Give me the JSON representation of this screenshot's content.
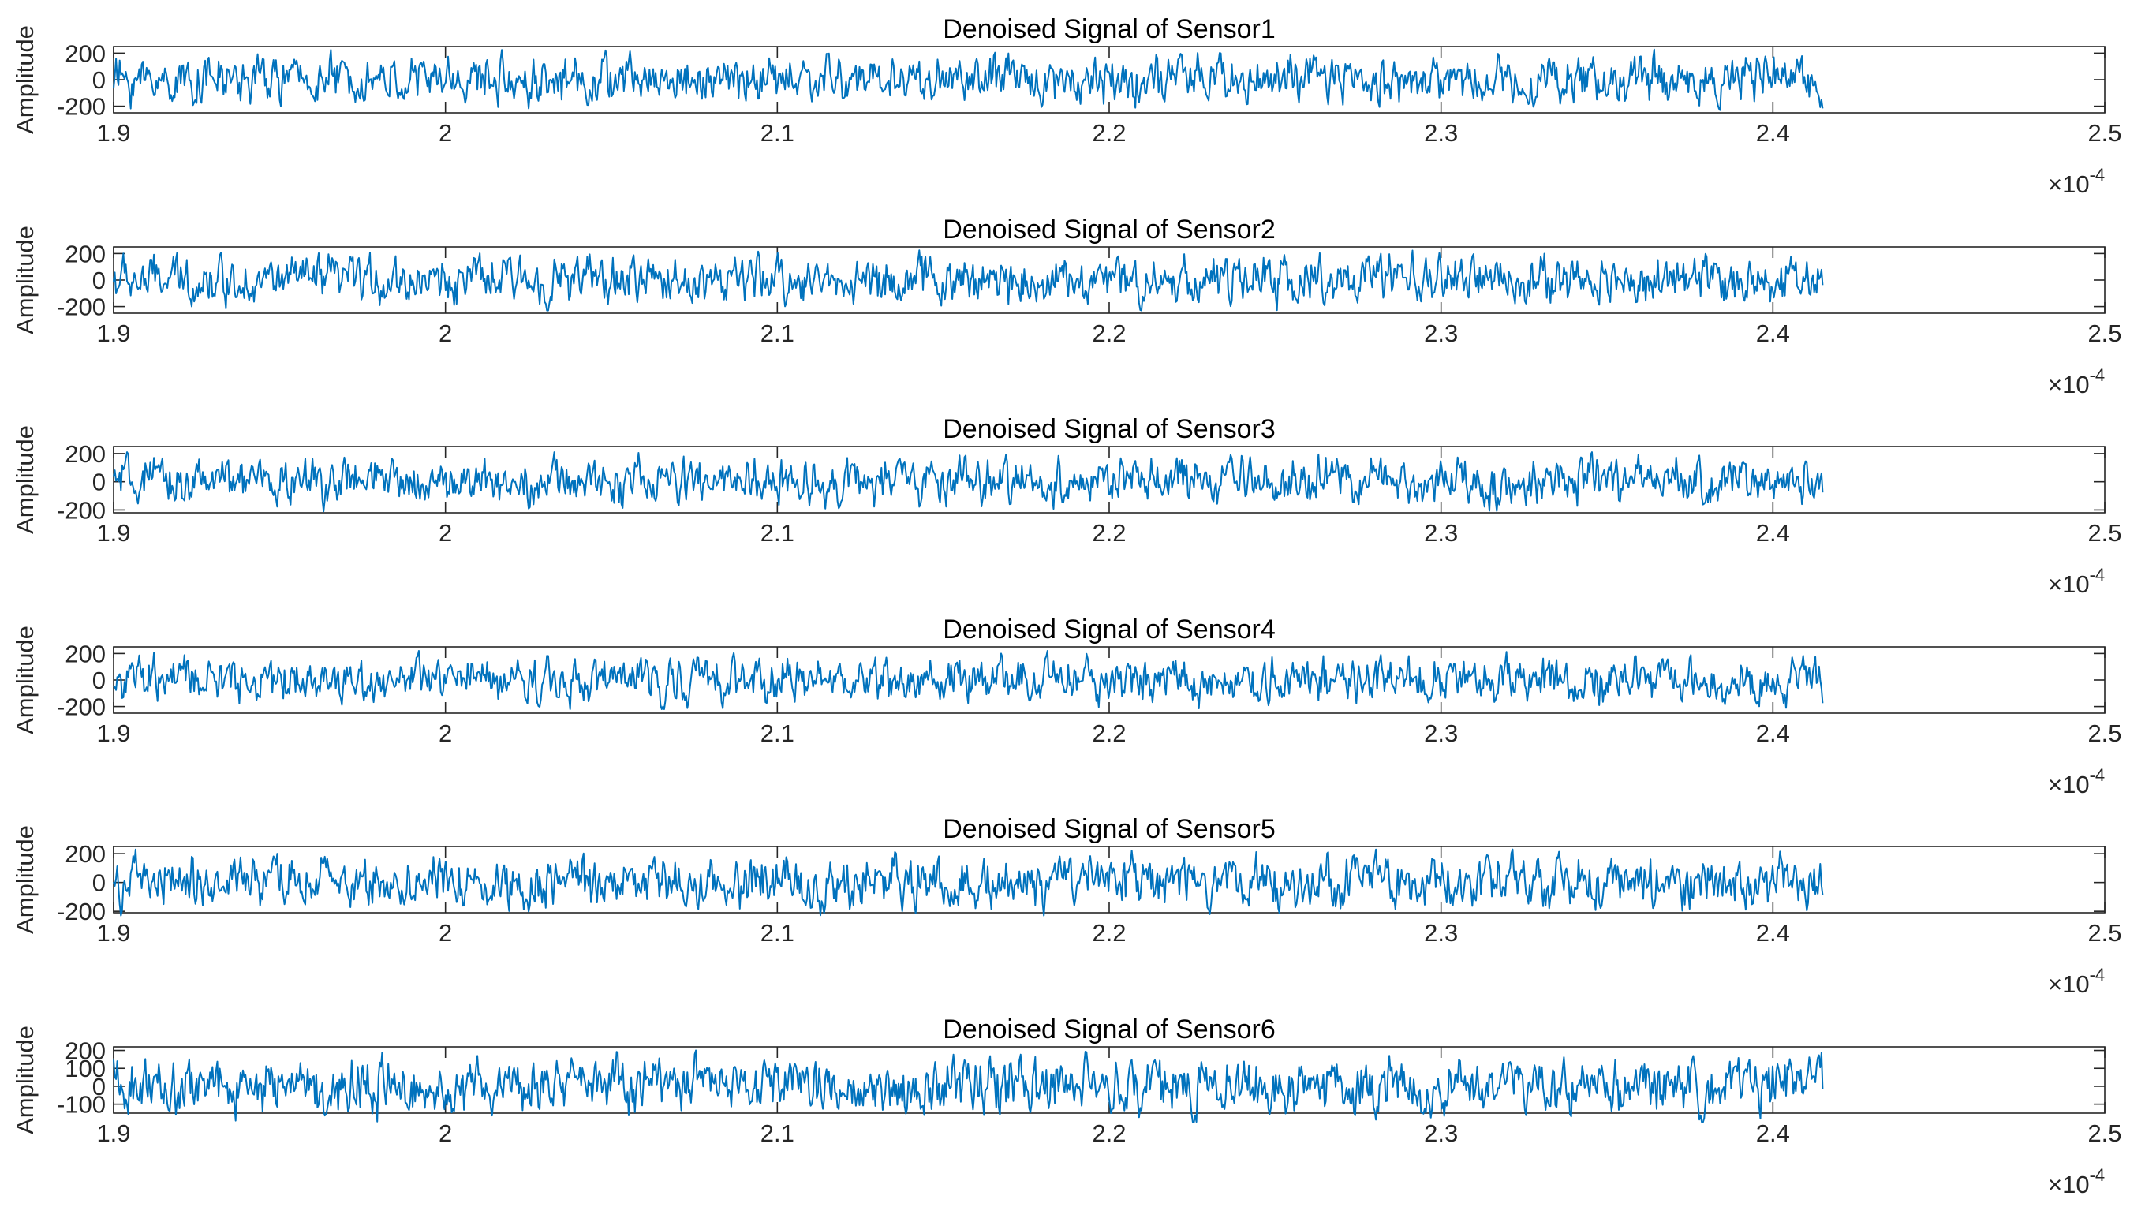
{
  "figure": {
    "x_multiplier_base": "×10",
    "x_multiplier_exponent": "-4"
  },
  "chart_data": [
    {
      "type": "line",
      "title": "Denoised Signal of Sensor1",
      "ylabel": "Amplitude",
      "xlim": [
        1.9,
        2.5
      ],
      "ylim": [
        -250,
        250
      ],
      "x_ticks": [
        "1.9",
        "2",
        "2.1",
        "2.2",
        "2.3",
        "2.4",
        "2.5"
      ],
      "x_tick_values": [
        1.9,
        2.0,
        2.1,
        2.2,
        2.3,
        2.4,
        2.5
      ],
      "y_ticks": [
        "200",
        "0",
        "-200"
      ],
      "y_tick_values": [
        200,
        0,
        -200
      ],
      "x_range_of_data": [
        1.9,
        2.415
      ],
      "amplitude_peak": 230,
      "color": "#0072BD",
      "series": [
        {
          "x_start": 1.9,
          "x_end": 2.415,
          "approx_peak_abs": 230,
          "kind": "noise-like oscillation"
        }
      ]
    },
    {
      "type": "line",
      "title": "Denoised Signal of Sensor2",
      "ylabel": "Amplitude",
      "xlim": [
        1.9,
        2.5
      ],
      "ylim": [
        -250,
        250
      ],
      "x_ticks": [
        "1.9",
        "2",
        "2.1",
        "2.2",
        "2.3",
        "2.4",
        "2.5"
      ],
      "x_tick_values": [
        1.9,
        2.0,
        2.1,
        2.2,
        2.3,
        2.4,
        2.5
      ],
      "y_ticks": [
        "200",
        "0",
        "-200"
      ],
      "y_tick_values": [
        200,
        0,
        -200
      ],
      "x_range_of_data": [
        1.9,
        2.415
      ],
      "amplitude_peak": 230,
      "color": "#0072BD",
      "series": [
        {
          "x_start": 1.9,
          "x_end": 2.415,
          "approx_peak_abs": 230,
          "kind": "noise-like oscillation"
        }
      ]
    },
    {
      "type": "line",
      "title": "Denoised Signal of Sensor3",
      "ylabel": "Amplitude",
      "xlim": [
        1.9,
        2.5
      ],
      "ylim": [
        -220,
        250
      ],
      "x_ticks": [
        "1.9",
        "2",
        "2.1",
        "2.2",
        "2.3",
        "2.4",
        "2.5"
      ],
      "x_tick_values": [
        1.9,
        2.0,
        2.1,
        2.2,
        2.3,
        2.4,
        2.5
      ],
      "y_ticks": [
        "200",
        "0",
        "-200"
      ],
      "y_tick_values": [
        200,
        0,
        -200
      ],
      "x_range_of_data": [
        1.9,
        2.415
      ],
      "amplitude_peak": 210,
      "color": "#0072BD",
      "series": [
        {
          "x_start": 1.9,
          "x_end": 2.415,
          "approx_peak_abs": 210,
          "kind": "noise-like oscillation"
        }
      ]
    },
    {
      "type": "line",
      "title": "Denoised Signal of Sensor4",
      "ylabel": "Amplitude",
      "xlim": [
        1.9,
        2.5
      ],
      "ylim": [
        -250,
        250
      ],
      "x_ticks": [
        "1.9",
        "2",
        "2.1",
        "2.2",
        "2.3",
        "2.4",
        "2.5"
      ],
      "x_tick_values": [
        1.9,
        2.0,
        2.1,
        2.2,
        2.3,
        2.4,
        2.5
      ],
      "y_ticks": [
        "200",
        "0",
        "-200"
      ],
      "y_tick_values": [
        200,
        0,
        -200
      ],
      "x_range_of_data": [
        1.9,
        2.415
      ],
      "amplitude_peak": 220,
      "color": "#0072BD",
      "series": [
        {
          "x_start": 1.9,
          "x_end": 2.415,
          "approx_peak_abs": 220,
          "kind": "noise-like oscillation"
        }
      ]
    },
    {
      "type": "line",
      "title": "Denoised Signal of Sensor5",
      "ylabel": "Amplitude",
      "xlim": [
        1.9,
        2.5
      ],
      "ylim": [
        -210,
        250
      ],
      "x_ticks": [
        "1.9",
        "2",
        "2.1",
        "2.2",
        "2.3",
        "2.4",
        "2.5"
      ],
      "x_tick_values": [
        1.9,
        2.0,
        2.1,
        2.2,
        2.3,
        2.4,
        2.5
      ],
      "y_ticks": [
        "200",
        "0",
        "-200"
      ],
      "y_tick_values": [
        200,
        0,
        -200
      ],
      "x_range_of_data": [
        1.9,
        2.415
      ],
      "amplitude_peak": 230,
      "color": "#0072BD",
      "series": [
        {
          "x_start": 1.9,
          "x_end": 2.415,
          "approx_peak_abs": 230,
          "kind": "noise-like oscillation"
        }
      ]
    },
    {
      "type": "line",
      "title": "Denoised Signal of Sensor6",
      "ylabel": "Amplitude",
      "xlim": [
        1.9,
        2.5
      ],
      "ylim": [
        -150,
        220
      ],
      "x_ticks": [
        "1.9",
        "2",
        "2.1",
        "2.2",
        "2.3",
        "2.4",
        "2.5"
      ],
      "x_tick_values": [
        1.9,
        2.0,
        2.1,
        2.2,
        2.3,
        2.4,
        2.5
      ],
      "y_ticks": [
        "200",
        "100",
        "0",
        "-100"
      ],
      "y_tick_values": [
        200,
        100,
        0,
        -100
      ],
      "x_range_of_data": [
        1.9,
        2.415
      ],
      "amplitude_peak": 200,
      "color": "#0072BD",
      "series": [
        {
          "x_start": 1.9,
          "x_end": 2.415,
          "approx_peak_abs": 200,
          "kind": "noise-like oscillation"
        }
      ]
    }
  ]
}
